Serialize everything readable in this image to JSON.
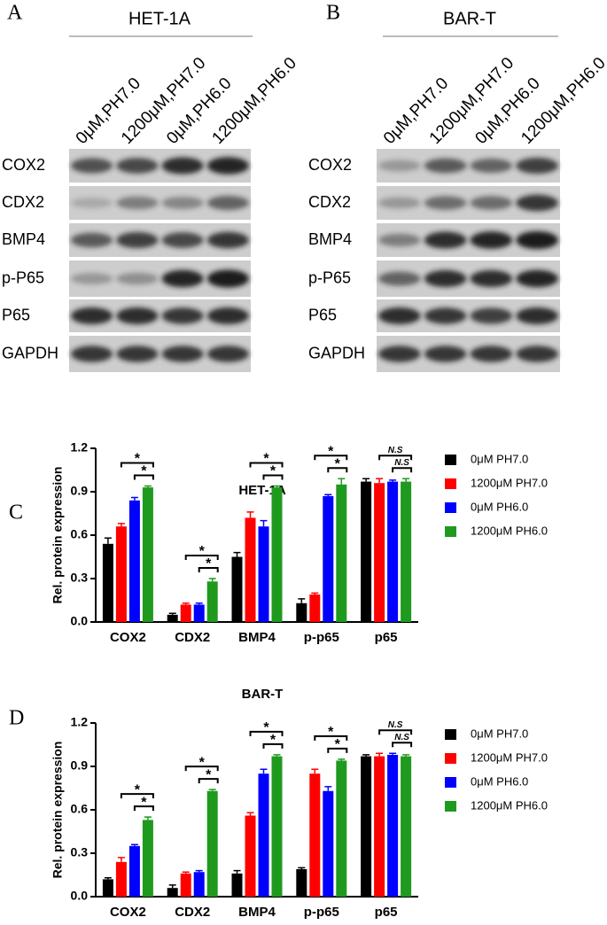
{
  "blots": [
    {
      "letter": "A",
      "title": "HET-1A",
      "lanes": [
        "0μM,PH7.0",
        "1200μM,PH7.0",
        "0μM,PH6.0",
        "1200μM,PH6.0"
      ],
      "rows": [
        "COX2",
        "CDX2",
        "BMP4",
        "p-P65",
        "P65",
        "GAPDH"
      ]
    },
    {
      "letter": "B",
      "title": "BAR-T",
      "lanes": [
        "0μM,PH7.0",
        "1200μM,PH7.0",
        "0μM,PH6.0",
        "1200μM,PH6.0"
      ],
      "rows": [
        "COX2",
        "CDX2",
        "BMP4",
        "p-P65",
        "P65",
        "GAPDH"
      ]
    }
  ],
  "chart_data": [
    {
      "type": "bar",
      "letter": "C",
      "title": "HET-1A",
      "y_label": "Rel. protein expression",
      "categories": [
        "COX2",
        "CDX2",
        "BMP4",
        "p-p65",
        "p65"
      ],
      "series": [
        {
          "name": "0μM PH7.0",
          "color": "#000000",
          "values": [
            0.54,
            0.05,
            0.45,
            0.13,
            0.97
          ],
          "errors": [
            0.04,
            0.01,
            0.03,
            0.03,
            0.02
          ]
        },
        {
          "name": "1200μM PH7.0",
          "color": "#ff0000",
          "values": [
            0.66,
            0.12,
            0.72,
            0.19,
            0.96
          ],
          "errors": [
            0.02,
            0.01,
            0.04,
            0.01,
            0.03
          ]
        },
        {
          "name": "0μM PH6.0",
          "color": "#0000ff",
          "values": [
            0.84,
            0.12,
            0.66,
            0.87,
            0.97
          ],
          "errors": [
            0.02,
            0.01,
            0.04,
            0.01,
            0.01
          ]
        },
        {
          "name": "1200μM PH6.0",
          "color": "#1f9a1f",
          "values": [
            0.93,
            0.28,
            0.93,
            0.95,
            0.97
          ],
          "errors": [
            0.01,
            0.02,
            0.01,
            0.04,
            0.02
          ]
        }
      ],
      "ylim": [
        0,
        1.2
      ],
      "yticks": [
        {
          "value": 0,
          "label": "0.0"
        },
        0.3,
        0.6,
        0.9,
        1.2
      ],
      "annotations": [
        {
          "category": 0,
          "from": 1,
          "to": 3,
          "label": "*"
        },
        {
          "category": 0,
          "from": 2,
          "to": 3,
          "label": "*"
        },
        {
          "category": 1,
          "from": 1,
          "to": 3,
          "label": "*"
        },
        {
          "category": 1,
          "from": 2,
          "to": 3,
          "label": "*"
        },
        {
          "category": 2,
          "from": 1,
          "to": 3,
          "label": "*"
        },
        {
          "category": 2,
          "from": 2,
          "to": 3,
          "label": "*"
        },
        {
          "category": 3,
          "from": 1,
          "to": 3,
          "label": "*"
        },
        {
          "category": 3,
          "from": 2,
          "to": 3,
          "label": "*"
        },
        {
          "category": 4,
          "from": 1,
          "to": 3,
          "label": "N.S"
        },
        {
          "category": 4,
          "from": 2,
          "to": 3,
          "label": "N.S"
        }
      ]
    },
    {
      "type": "bar",
      "letter": "D",
      "title": "BAR-T",
      "y_label": "Rel. protein expression",
      "categories": [
        "COX2",
        "CDX2",
        "BMP4",
        "p-p65",
        "p65"
      ],
      "series": [
        {
          "name": "0μM PH7.0",
          "color": "#000000",
          "values": [
            0.12,
            0.06,
            0.16,
            0.19,
            0.97
          ],
          "errors": [
            0.01,
            0.02,
            0.02,
            0.01,
            0.01
          ]
        },
        {
          "name": "1200μM PH7.0",
          "color": "#ff0000",
          "values": [
            0.24,
            0.16,
            0.56,
            0.85,
            0.97
          ],
          "errors": [
            0.03,
            0.01,
            0.02,
            0.03,
            0.02
          ]
        },
        {
          "name": "0μM PH6.0",
          "color": "#0000ff",
          "values": [
            0.35,
            0.17,
            0.85,
            0.73,
            0.98
          ],
          "errors": [
            0.01,
            0.01,
            0.03,
            0.03,
            0.01
          ]
        },
        {
          "name": "1200μM PH6.0",
          "color": "#1f9a1f",
          "values": [
            0.53,
            0.73,
            0.97,
            0.94,
            0.97
          ],
          "errors": [
            0.02,
            0.01,
            0.01,
            0.01,
            0.01
          ]
        }
      ],
      "ylim": [
        0,
        1.2
      ],
      "yticks": [
        {
          "value": 0,
          "label": "0.0"
        },
        0.3,
        0.6,
        0.9,
        1.2
      ],
      "annotations": [
        {
          "category": 0,
          "from": 1,
          "to": 3,
          "label": "*"
        },
        {
          "category": 0,
          "from": 2,
          "to": 3,
          "label": "*"
        },
        {
          "category": 1,
          "from": 1,
          "to": 3,
          "label": "*"
        },
        {
          "category": 1,
          "from": 2,
          "to": 3,
          "label": "*"
        },
        {
          "category": 2,
          "from": 1,
          "to": 3,
          "label": "*"
        },
        {
          "category": 2,
          "from": 2,
          "to": 3,
          "label": "*"
        },
        {
          "category": 3,
          "from": 1,
          "to": 3,
          "label": "*"
        },
        {
          "category": 3,
          "from": 2,
          "to": 3,
          "label": "*"
        },
        {
          "category": 4,
          "from": 1,
          "to": 3,
          "label": "N.S"
        },
        {
          "category": 4,
          "from": 2,
          "to": 3,
          "label": "N.S"
        }
      ]
    }
  ]
}
